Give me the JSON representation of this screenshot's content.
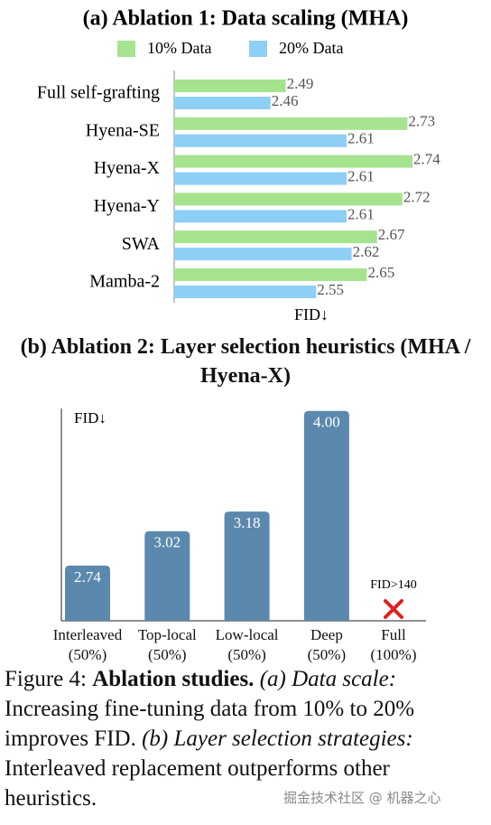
{
  "chart_data": [
    {
      "type": "bar",
      "orientation": "horizontal",
      "title": "(a) Ablation 1: Data scaling (MHA)",
      "x_label": "FID↓",
      "categories": [
        "Full self-grafting",
        "Hyena-SE",
        "Hyena-X",
        "Hyena-Y",
        "SWA",
        "Mamba-2"
      ],
      "series": [
        {
          "name": "10% Data",
          "color": "#a6e38f",
          "values": [
            2.49,
            2.73,
            2.74,
            2.72,
            2.67,
            2.65
          ]
        },
        {
          "name": "20% Data",
          "color": "#8ecff5",
          "values": [
            2.46,
            2.61,
            2.61,
            2.61,
            2.62,
            2.55
          ]
        }
      ],
      "xlim": [
        2.27,
        2.82
      ],
      "legend": "top"
    },
    {
      "type": "bar",
      "orientation": "vertical",
      "title": "(b) Ablation 2: Layer selection heuristics (MHA / Hyena-X)",
      "y_label": "FID↓",
      "categories": [
        "Interleaved\n(50%)",
        "Top-local\n(50%)",
        "Low-local\n(50%)",
        "Deep\n(50%)",
        "Full\n(100%)"
      ],
      "values": [
        2.74,
        3.02,
        3.18,
        4.0,
        null
      ],
      "value_labels": [
        "2.74",
        "3.02",
        "3.18",
        "4.00",
        null
      ],
      "color": "#5b89ad",
      "annotation": "FID>140",
      "ylim": [
        2.29,
        4.02
      ]
    }
  ],
  "caption": {
    "label": "Figure 4:",
    "bold": "Ablation studies.",
    "italic_a": "(a) Data scale:",
    "text_a": "Increasing fine-tuning data from 10% to 20% improves FID.",
    "italic_b": "(b) Layer selection strategies:",
    "text_b": "Interleaved replacement outperforms other heuristics."
  },
  "watermark": "掘金技术社区 @ 机器之心"
}
